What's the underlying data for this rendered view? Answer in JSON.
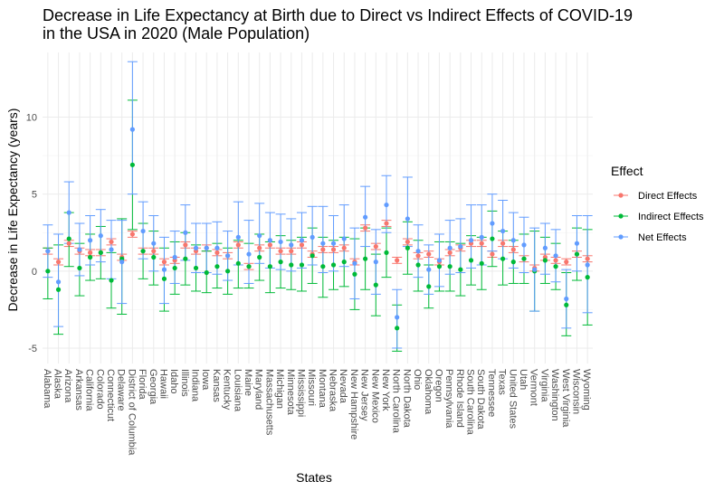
{
  "chart_data": {
    "type": "scatter",
    "title_line1": "Decrease in Life Expectancy at Birth due to Direct vs Indirect Effects of COVID-19",
    "title_line2": "in the USA in 2020 (Male Population)",
    "xlabel": "States",
    "ylabel": "Decrease in Life Expectancy (years)",
    "ylim": [
      -6.0,
      14.2
    ],
    "yticks": [
      -5,
      0,
      5,
      10
    ],
    "legend_title": "Effect",
    "legend_position": "right",
    "categories": [
      "Alabama",
      "Alaska",
      "Arizona",
      "Arkansas",
      "California",
      "Colorado",
      "Connecticut",
      "Delaware",
      "District of Columbia",
      "Florida",
      "Georgia",
      "Hawaii",
      "Idaho",
      "Illinois",
      "Indiana",
      "Iowa",
      "Kansas",
      "Kentucky",
      "Louisiana",
      "Maine",
      "Maryland",
      "Massachusetts",
      "Michigan",
      "Minnesota",
      "Mississippi",
      "Missouri",
      "Montana",
      "Nebraska",
      "Nevada",
      "New Hampshire",
      "New Jersey",
      "New Mexico",
      "New York",
      "North Carolina",
      "North Dakota",
      "Ohio",
      "Oklahoma",
      "Oregon",
      "Pennsylvania",
      "Rhode Island",
      "South Carolina",
      "South Dakota",
      "Tennessee",
      "Texas",
      "United States",
      "Utah",
      "Vermont",
      "Virginia",
      "Washington",
      "West Virginia",
      "Wisconsin",
      "Wyoming"
    ],
    "series": [
      {
        "name": "Direct Effects",
        "color": "#F8766D",
        "values": [
          1.3,
          0.6,
          1.8,
          1.3,
          1.2,
          1.2,
          1.9,
          0.9,
          2.4,
          1.3,
          1.3,
          0.6,
          0.7,
          1.7,
          1.3,
          1.5,
          1.2,
          1.0,
          1.7,
          0.3,
          1.5,
          1.7,
          1.3,
          1.3,
          1.7,
          1.1,
          1.4,
          1.4,
          1.5,
          0.6,
          2.8,
          1.6,
          3.1,
          0.7,
          1.9,
          1.0,
          1.1,
          0.6,
          1.2,
          1.5,
          1.8,
          1.8,
          1.1,
          1.8,
          1.4,
          0.8,
          0.2,
          0.9,
          0.7,
          0.6,
          1.1,
          0.8
        ],
        "lower": [
          1.1,
          0.4,
          1.6,
          1.1,
          1.0,
          1.0,
          1.7,
          0.7,
          2.2,
          1.1,
          1.1,
          0.4,
          0.5,
          1.5,
          1.1,
          1.3,
          1.0,
          0.8,
          1.5,
          0.1,
          1.3,
          1.5,
          1.1,
          1.1,
          1.5,
          0.9,
          1.2,
          1.2,
          1.3,
          0.4,
          2.6,
          1.4,
          2.9,
          0.5,
          1.7,
          0.8,
          0.9,
          0.4,
          1.0,
          1.3,
          1.6,
          1.6,
          0.9,
          1.6,
          1.2,
          0.6,
          0.0,
          0.7,
          0.5,
          0.4,
          0.9,
          0.6
        ],
        "upper": [
          1.5,
          0.8,
          2.0,
          1.5,
          1.4,
          1.4,
          2.1,
          1.1,
          2.6,
          1.5,
          1.5,
          0.8,
          0.9,
          1.9,
          1.5,
          1.7,
          1.4,
          1.2,
          1.9,
          0.5,
          1.7,
          1.9,
          1.5,
          1.5,
          1.9,
          1.3,
          1.6,
          1.6,
          1.7,
          0.8,
          3.0,
          1.8,
          3.3,
          0.9,
          2.1,
          1.2,
          1.3,
          0.8,
          1.4,
          1.7,
          2.0,
          2.0,
          1.3,
          2.0,
          1.6,
          1.0,
          0.4,
          1.1,
          0.9,
          0.8,
          1.3,
          1.0
        ]
      },
      {
        "name": "Indirect Effects",
        "color": "#00BA38",
        "values": [
          0.0,
          -1.2,
          2.1,
          0.2,
          0.9,
          1.2,
          -0.6,
          0.8,
          6.9,
          1.3,
          0.9,
          -0.5,
          0.2,
          0.8,
          0.2,
          -0.1,
          0.3,
          0.0,
          0.5,
          0.3,
          0.9,
          0.3,
          0.6,
          0.4,
          0.4,
          1.0,
          0.3,
          0.4,
          0.6,
          -0.2,
          0.8,
          -0.9,
          1.2,
          -3.7,
          1.5,
          0.4,
          -1.0,
          0.3,
          0.3,
          0.1,
          0.7,
          0.5,
          2.1,
          0.8,
          0.6,
          0.8,
          0.0,
          0.7,
          0.3,
          -2.2,
          1.1,
          -0.4
        ],
        "lower": [
          -1.8,
          -4.1,
          0.3,
          -1.6,
          -0.6,
          -0.5,
          -2.4,
          -2.8,
          2.7,
          -0.5,
          -0.9,
          -2.6,
          -1.5,
          -0.9,
          -1.3,
          -1.4,
          -1.1,
          -1.5,
          -1.1,
          -1.1,
          -0.6,
          -1.4,
          -1.1,
          -1.2,
          -1.3,
          -0.8,
          -1.7,
          -1.2,
          -1.0,
          -2.5,
          -1.2,
          -2.9,
          -0.4,
          -5.2,
          -0.2,
          -1.3,
          -2.4,
          -1.3,
          -1.3,
          -1.6,
          -0.9,
          -1.2,
          0.3,
          -0.9,
          -0.8,
          -0.8,
          -2.6,
          -0.8,
          -1.2,
          -4.2,
          -0.6,
          -3.5
        ],
        "upper": [
          1.5,
          1.7,
          3.8,
          1.8,
          2.4,
          2.9,
          1.2,
          3.4,
          11.1,
          3.1,
          2.6,
          1.5,
          1.9,
          2.5,
          1.7,
          1.3,
          1.8,
          1.5,
          2.0,
          1.8,
          2.4,
          1.9,
          2.3,
          2.0,
          2.2,
          2.8,
          2.2,
          2.0,
          2.2,
          2.1,
          2.8,
          1.1,
          2.8,
          -2.2,
          3.2,
          2.0,
          0.4,
          1.9,
          1.9,
          1.8,
          2.3,
          2.2,
          3.9,
          2.6,
          2.0,
          2.4,
          2.6,
          2.2,
          1.8,
          -0.1,
          2.8,
          2.7
        ]
      },
      {
        "name": "Net Effects",
        "color": "#619CFF",
        "values": [
          1.3,
          -0.7,
          3.8,
          1.4,
          2.0,
          2.3,
          1.4,
          0.6,
          9.2,
          2.6,
          1.8,
          0.1,
          0.9,
          2.5,
          1.5,
          1.5,
          1.5,
          1.0,
          2.2,
          1.1,
          2.3,
          2.0,
          1.9,
          1.7,
          2.0,
          2.2,
          1.8,
          1.8,
          2.1,
          0.5,
          3.5,
          0.6,
          4.3,
          -3.0,
          3.4,
          1.3,
          0.1,
          0.7,
          1.5,
          1.6,
          2.0,
          2.2,
          3.1,
          2.6,
          2.0,
          1.7,
          0.1,
          1.5,
          1.0,
          -1.8,
          1.8,
          0.4
        ],
        "lower": [
          -0.4,
          -3.6,
          1.8,
          -0.3,
          0.4,
          0.6,
          -0.5,
          -2.1,
          5.0,
          0.8,
          0.0,
          -2.1,
          -0.8,
          0.7,
          -0.1,
          -0.1,
          -0.2,
          -0.6,
          0.4,
          -0.8,
          0.5,
          0.2,
          0.1,
          0.0,
          0.2,
          0.4,
          -0.1,
          0.0,
          0.3,
          -1.8,
          1.6,
          -1.5,
          2.5,
          -5.0,
          1.6,
          -0.4,
          -1.5,
          -1.0,
          -0.2,
          -0.1,
          0.2,
          0.4,
          1.3,
          0.8,
          0.2,
          -0.1,
          -2.6,
          -0.2,
          -0.7,
          -3.7,
          0.0,
          -2.7
        ],
        "upper": [
          3.0,
          2.4,
          5.8,
          3.1,
          3.6,
          4.0,
          3.3,
          3.3,
          13.6,
          4.5,
          3.6,
          2.2,
          2.6,
          4.3,
          3.1,
          3.1,
          3.2,
          2.6,
          4.5,
          3.3,
          4.4,
          3.8,
          3.7,
          3.4,
          3.8,
          4.2,
          4.2,
          3.6,
          4.3,
          2.8,
          5.5,
          2.7,
          6.2,
          -1.2,
          6.1,
          3.0,
          1.7,
          2.4,
          3.3,
          3.4,
          4.3,
          4.3,
          5.0,
          4.6,
          3.8,
          3.5,
          2.8,
          3.1,
          2.7,
          0.1,
          3.6,
          3.6
        ]
      }
    ]
  }
}
